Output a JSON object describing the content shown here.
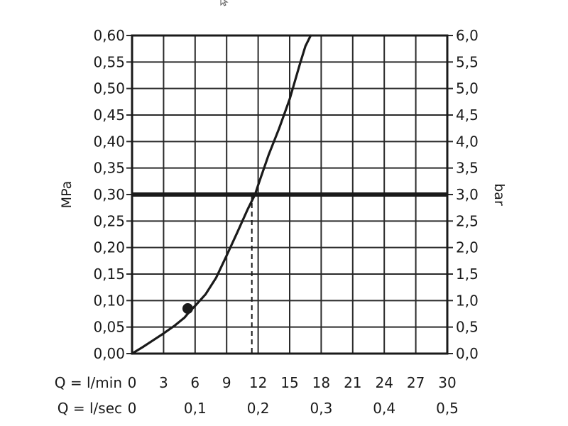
{
  "chart_data": {
    "type": "line",
    "title": "",
    "y_left": {
      "label": "MPa",
      "range": [
        0,
        0.6
      ],
      "ticks": [
        "0,00",
        "0,05",
        "0,10",
        "0,15",
        "0,20",
        "0,25",
        "0,30",
        "0,35",
        "0,40",
        "0,45",
        "0,50",
        "0,55",
        "0,60"
      ]
    },
    "y_right": {
      "label": "bar",
      "range": [
        0,
        6
      ],
      "ticks": [
        "0,0",
        "0,5",
        "1,0",
        "1,5",
        "2,0",
        "2,5",
        "3,0",
        "3,5",
        "4,0",
        "4,5",
        "5,0",
        "5,5",
        "6,0"
      ]
    },
    "x_rows": [
      {
        "label": "Q = l/min",
        "range": [
          0,
          30
        ],
        "tick_values": [
          0,
          3,
          6,
          9,
          12,
          15,
          18,
          21,
          24,
          27,
          30
        ],
        "ticks": [
          "0",
          "3",
          "6",
          "9",
          "12",
          "15",
          "18",
          "21",
          "24",
          "27",
          "30"
        ]
      },
      {
        "label": "Q = l/sec",
        "tick_values": [
          0,
          6,
          12,
          18,
          24,
          30
        ],
        "ticks": [
          "0",
          "0,1",
          "0,2",
          "0,3",
          "0,4",
          "0,5"
        ]
      }
    ],
    "grid": true,
    "series": [
      {
        "x": [
          0,
          1,
          2,
          3,
          4,
          5,
          5.5,
          6,
          7,
          8,
          9,
          10,
          11,
          11.7,
          12,
          13,
          14,
          15,
          16,
          16.5,
          17
        ],
        "y": [
          0,
          0.012,
          0.025,
          0.038,
          0.052,
          0.068,
          0.08,
          0.09,
          0.112,
          0.143,
          0.185,
          0.228,
          0.272,
          0.3,
          0.318,
          0.375,
          0.425,
          0.48,
          0.548,
          0.58,
          0.6
        ]
      }
    ],
    "marker": {
      "x": 5.3,
      "y": 0.085
    },
    "reference_line": {
      "y": 0.3
    },
    "reference_drop": {
      "x": 11.4,
      "y": 0.3
    }
  }
}
